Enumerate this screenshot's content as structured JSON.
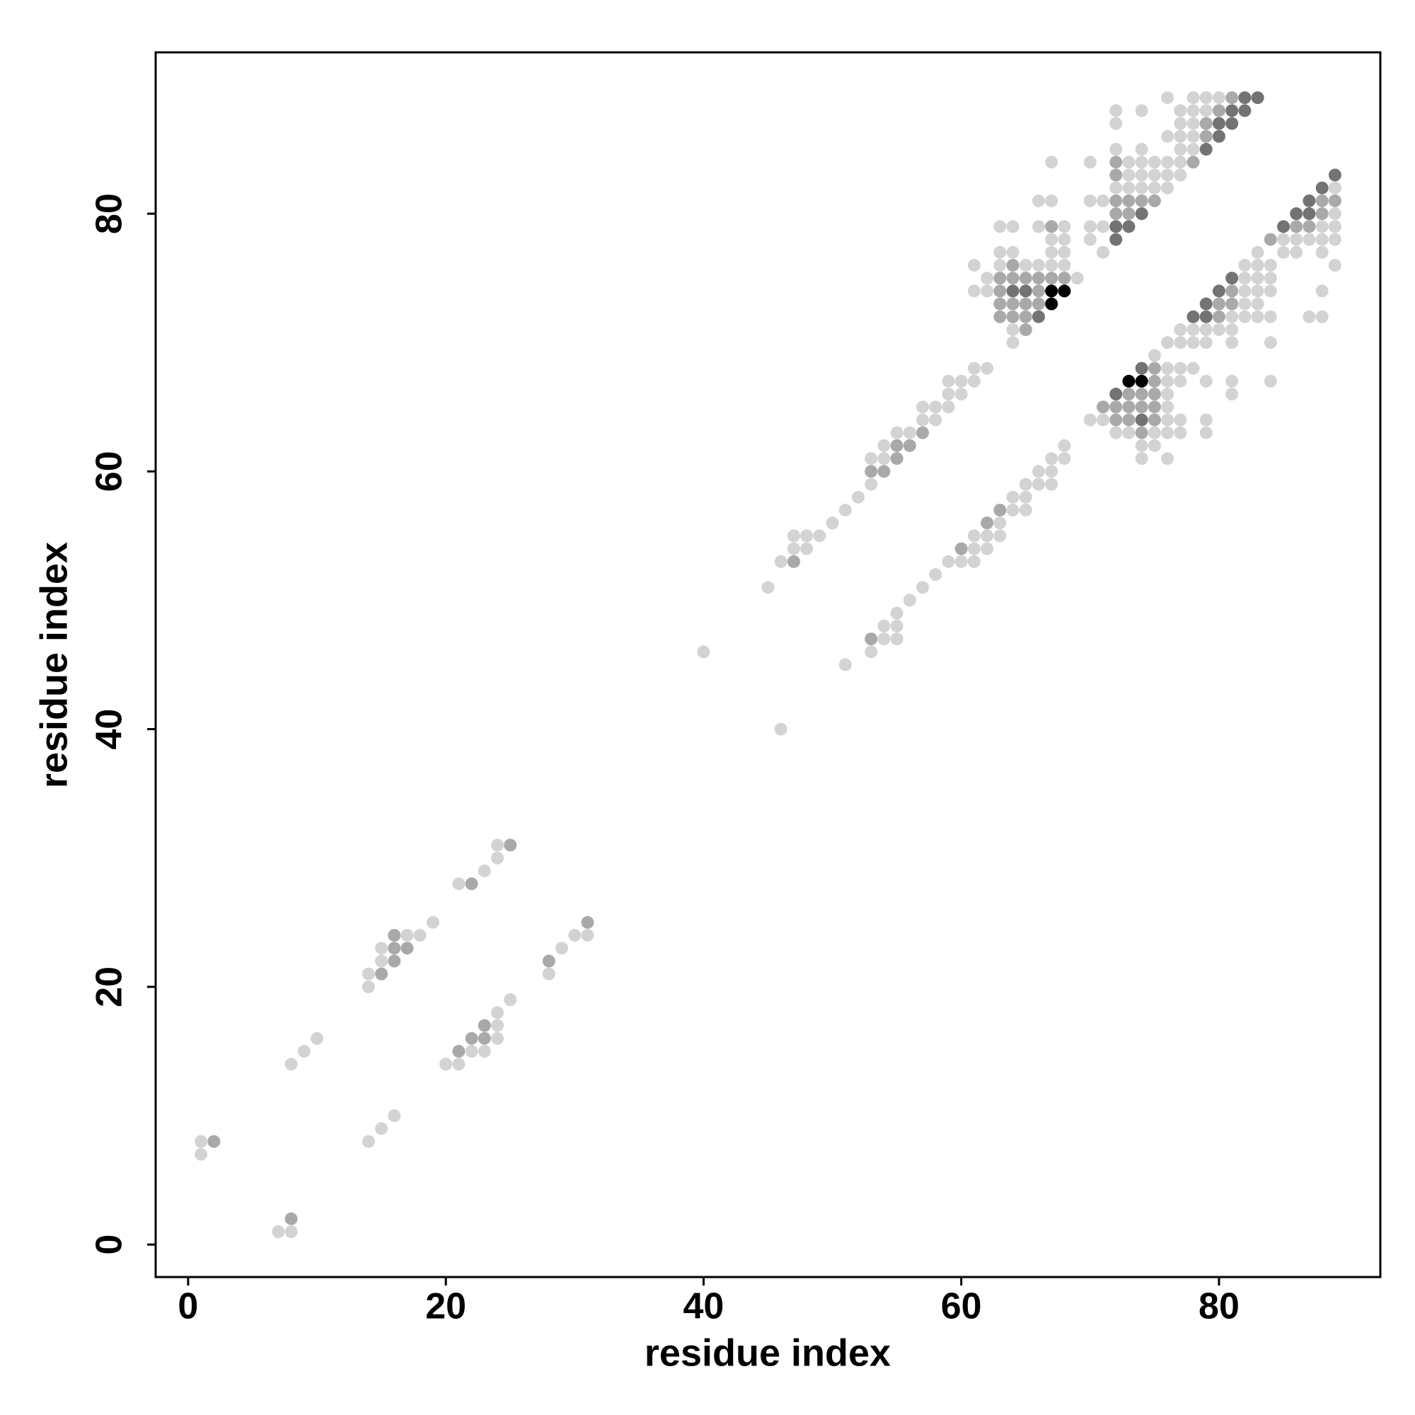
{
  "chart_data": {
    "type": "scatter",
    "xlabel": "residue index",
    "ylabel": "residue index",
    "xlim": [
      -2.52,
      92.52
    ],
    "ylim": [
      -2.52,
      92.52
    ],
    "xticks": [
      0,
      20,
      40,
      60,
      80
    ],
    "yticks": [
      0,
      20,
      40,
      60,
      80
    ],
    "series": [
      {
        "color": "#d3d3d3",
        "x": [
          1,
          1,
          7,
          8,
          8,
          9,
          10,
          14,
          15,
          16,
          14,
          14,
          15,
          15,
          17,
          18,
          19,
          20,
          21,
          22,
          23,
          24,
          24,
          24,
          25,
          21,
          23,
          24,
          24,
          28,
          29,
          30,
          31,
          40,
          46,
          45,
          46,
          47,
          47,
          48,
          48,
          49,
          50,
          51,
          52,
          53,
          53,
          54,
          54,
          55,
          56,
          57,
          57,
          58,
          58,
          59,
          59,
          59,
          60,
          60,
          61,
          61,
          62,
          51,
          53,
          54,
          54,
          55,
          55,
          55,
          56,
          57,
          58,
          59,
          60,
          61,
          61,
          61,
          62,
          62,
          63,
          63,
          64,
          64,
          65,
          65,
          65,
          66,
          66,
          67,
          67,
          67,
          68,
          68,
          61,
          61,
          62,
          62,
          63,
          63,
          63,
          64,
          64,
          64,
          64,
          65,
          66,
          66,
          66,
          67,
          67,
          67,
          67,
          67,
          68,
          68,
          68,
          68,
          69,
          70,
          71,
          72,
          73,
          74,
          74,
          75,
          75,
          75,
          76,
          76,
          76,
          76,
          76,
          76,
          76,
          77,
          77,
          77,
          77,
          78,
          79,
          79,
          79,
          70,
          70,
          70,
          70,
          71,
          71,
          71,
          72,
          72,
          72,
          72,
          73,
          73,
          73,
          74,
          74,
          74,
          74,
          74,
          75,
          75,
          75,
          76,
          76,
          76,
          76,
          76,
          77,
          77,
          77,
          77,
          77,
          77,
          78,
          78,
          78,
          78,
          78,
          79,
          79,
          80,
          76,
          77,
          77,
          78,
          78,
          79,
          79,
          80,
          81,
          81,
          81,
          81,
          81,
          82,
          82,
          82,
          82,
          82,
          83,
          83,
          83,
          83,
          83,
          83,
          84,
          84,
          84,
          84,
          84,
          84,
          85,
          85,
          86,
          86,
          87,
          87,
          88,
          88,
          88,
          88,
          88,
          89,
          89,
          89,
          89,
          89
        ],
        "y": [
          8,
          7,
          1,
          1,
          14,
          15,
          16,
          8,
          9,
          10,
          21,
          20,
          23,
          22,
          24,
          24,
          25,
          14,
          14,
          15,
          15,
          16,
          17,
          18,
          19,
          28,
          29,
          30,
          31,
          21,
          23,
          24,
          24,
          46,
          40,
          51,
          53,
          54,
          55,
          54,
          55,
          55,
          56,
          57,
          58,
          59,
          61,
          61,
          62,
          63,
          63,
          64,
          65,
          64,
          65,
          65,
          66,
          67,
          66,
          67,
          67,
          68,
          68,
          45,
          46,
          47,
          48,
          47,
          48,
          49,
          50,
          51,
          52,
          53,
          53,
          53,
          54,
          55,
          54,
          55,
          55,
          56,
          57,
          58,
          57,
          58,
          59,
          59,
          60,
          59,
          60,
          61,
          61,
          62,
          76,
          74,
          75,
          74,
          79,
          77,
          76,
          79,
          77,
          71,
          70,
          76,
          81,
          79,
          76,
          84,
          81,
          78,
          77,
          76,
          79,
          78,
          77,
          76,
          75,
          64,
          64,
          63,
          63,
          62,
          61,
          69,
          63,
          62,
          68,
          67,
          66,
          65,
          64,
          63,
          61,
          68,
          67,
          64,
          63,
          68,
          67,
          64,
          63,
          84,
          81,
          79,
          78,
          81,
          79,
          77,
          88,
          87,
          85,
          82,
          84,
          83,
          82,
          88,
          85,
          84,
          83,
          82,
          84,
          83,
          82,
          89,
          86,
          84,
          83,
          82,
          88,
          87,
          86,
          85,
          84,
          83,
          89,
          88,
          87,
          86,
          85,
          89,
          88,
          89,
          70,
          71,
          70,
          71,
          70,
          71,
          70,
          71,
          72,
          71,
          70,
          67,
          66,
          76,
          75,
          74,
          73,
          72,
          77,
          76,
          75,
          74,
          73,
          72,
          76,
          75,
          74,
          72,
          70,
          67,
          78,
          77,
          78,
          77,
          78,
          72,
          79,
          78,
          77,
          74,
          72,
          82,
          80,
          79,
          78,
          76
        ]
      },
      {
        "color": "#a9a9a9",
        "x": [
          2,
          8,
          15,
          16,
          16,
          16,
          17,
          21,
          22,
          23,
          23,
          22,
          25,
          28,
          31,
          47,
          53,
          54,
          55,
          55,
          56,
          57,
          53,
          60,
          62,
          63,
          63,
          63,
          63,
          63,
          64,
          64,
          64,
          64,
          65,
          65,
          65,
          65,
          66,
          66,
          66,
          67,
          67,
          68,
          71,
          72,
          72,
          73,
          73,
          73,
          74,
          74,
          74,
          75,
          75,
          75,
          75,
          75,
          72,
          72,
          72,
          72,
          73,
          73,
          74,
          75,
          78,
          79,
          79,
          80,
          81,
          80,
          80,
          81,
          81,
          84,
          86,
          87,
          88,
          88,
          89
        ],
        "y": [
          8,
          2,
          21,
          24,
          23,
          22,
          23,
          15,
          16,
          16,
          17,
          28,
          31,
          22,
          25,
          53,
          60,
          60,
          61,
          62,
          62,
          63,
          47,
          54,
          56,
          57,
          75,
          74,
          73,
          72,
          76,
          75,
          73,
          72,
          75,
          73,
          72,
          71,
          75,
          74,
          73,
          79,
          75,
          75,
          65,
          65,
          64,
          66,
          65,
          64,
          66,
          65,
          63,
          68,
          67,
          66,
          65,
          64,
          84,
          83,
          81,
          80,
          81,
          80,
          81,
          81,
          84,
          87,
          86,
          88,
          89,
          73,
          72,
          74,
          73,
          78,
          79,
          79,
          81,
          80,
          81
        ]
      },
      {
        "color": "#737373",
        "x": [
          64,
          65,
          66,
          72,
          74,
          74,
          72,
          72,
          73,
          74,
          79,
          80,
          80,
          81,
          81,
          82,
          82,
          83,
          78,
          79,
          79,
          80,
          81,
          85,
          86,
          87,
          87,
          88,
          89
        ],
        "y": [
          74,
          74,
          72,
          66,
          68,
          64,
          79,
          78,
          79,
          80,
          85,
          87,
          86,
          88,
          87,
          89,
          88,
          89,
          72,
          73,
          72,
          74,
          75,
          79,
          80,
          81,
          80,
          82,
          83
        ]
      },
      {
        "color": "#000000",
        "x": [
          67,
          67,
          68,
          73,
          74
        ],
        "y": [
          74,
          73,
          74,
          67,
          67
        ]
      }
    ]
  }
}
